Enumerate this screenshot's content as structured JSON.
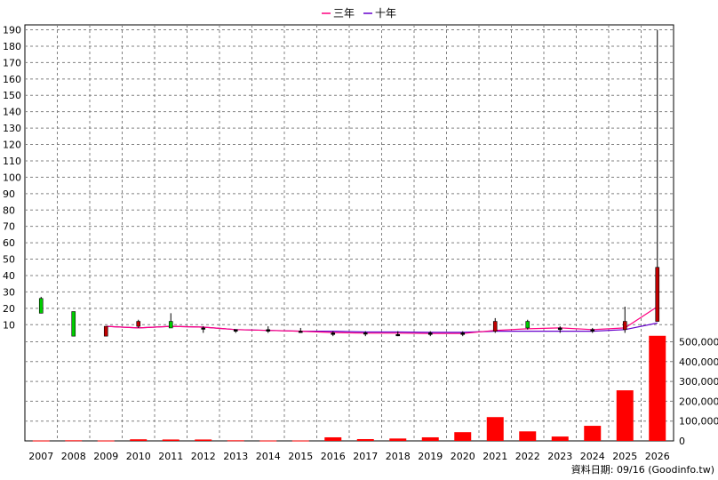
{
  "chart_data": {
    "type": "candlestick",
    "legend": [
      {
        "name": "三年",
        "color": "#ff0080"
      },
      {
        "name": "十年",
        "color": "#6600cc"
      }
    ],
    "years": [
      "2007",
      "2008",
      "2009",
      "2010",
      "2011",
      "2012",
      "2013",
      "2014",
      "2015",
      "2016",
      "2017",
      "2018",
      "2019",
      "2020",
      "2021",
      "2022",
      "2023",
      "2024",
      "2025",
      "2026"
    ],
    "price_axis": {
      "ticks": [
        10,
        20,
        30,
        40,
        50,
        60,
        70,
        80,
        90,
        100,
        110,
        120,
        130,
        140,
        150,
        160,
        170,
        180,
        190
      ],
      "ylim": [
        2,
        193
      ]
    },
    "volume_axis": {
      "ticks": [
        "0",
        "100,000",
        "200,000",
        "300,000",
        "400,000",
        "500,000"
      ],
      "tick_values": [
        0,
        100000,
        200000,
        300000,
        400000,
        500000
      ],
      "ylim": [
        0,
        520000
      ]
    },
    "candles": [
      {
        "year": "2007",
        "open": 17,
        "close": 26,
        "high": 27,
        "low": 17,
        "color": "green"
      },
      {
        "year": "2008",
        "open": 18,
        "close": 3,
        "high": 18,
        "low": 3,
        "color": "green"
      },
      {
        "year": "2009",
        "open": 9,
        "close": 3,
        "high": 9,
        "low": 3,
        "color": "red"
      },
      {
        "year": "2010",
        "open": 9,
        "close": 12,
        "high": 13,
        "low": 8,
        "color": "red"
      },
      {
        "year": "2011",
        "open": 12,
        "close": 8,
        "high": 17,
        "low": 8,
        "color": "green"
      },
      {
        "year": "2012",
        "open": 8,
        "close": 8,
        "high": 9,
        "low": 5,
        "color": "black"
      },
      {
        "year": "2013",
        "open": 7,
        "close": 6,
        "high": 7,
        "low": 5,
        "color": "black"
      },
      {
        "year": "2014",
        "open": 7,
        "close": 6,
        "high": 9,
        "low": 5,
        "color": "black"
      },
      {
        "year": "2015",
        "open": 6,
        "close": 6,
        "high": 8,
        "low": 5,
        "color": "black"
      },
      {
        "year": "2016",
        "open": 5,
        "close": 4,
        "high": 6,
        "low": 3,
        "color": "black"
      },
      {
        "year": "2017",
        "open": 5,
        "close": 5,
        "high": 6,
        "low": 3,
        "color": "black"
      },
      {
        "year": "2018",
        "open": 4,
        "close": 4,
        "high": 6,
        "low": 3,
        "color": "black"
      },
      {
        "year": "2019",
        "open": 5,
        "close": 4,
        "high": 6,
        "low": 3,
        "color": "black"
      },
      {
        "year": "2020",
        "open": 5,
        "close": 4,
        "high": 6,
        "low": 3,
        "color": "black"
      },
      {
        "year": "2021",
        "open": 6,
        "close": 12,
        "high": 14,
        "low": 5,
        "color": "red"
      },
      {
        "year": "2022",
        "open": 12,
        "close": 8,
        "high": 13,
        "low": 7,
        "color": "green"
      },
      {
        "year": "2023",
        "open": 8,
        "close": 7,
        "high": 9,
        "low": 5,
        "color": "black"
      },
      {
        "year": "2024",
        "open": 7,
        "close": 6,
        "high": 8,
        "low": 5,
        "color": "black"
      },
      {
        "year": "2025",
        "open": 7,
        "close": 12,
        "high": 21,
        "low": 5,
        "color": "red"
      },
      {
        "year": "2026",
        "open": 12,
        "close": 45,
        "high": 190,
        "low": 12,
        "color": "red"
      }
    ],
    "ma_three": [
      null,
      null,
      9,
      8,
      9,
      8.5,
      7,
      6.5,
      6,
      5.2,
      4.8,
      4.8,
      4.6,
      4.6,
      6.5,
      7.5,
      8,
      7,
      8,
      21
    ],
    "ma_ten": [
      null,
      null,
      9,
      8,
      9,
      8.5,
      7,
      6.5,
      6,
      6,
      5.5,
      5.5,
      5.3,
      5.3,
      6,
      6,
      6,
      6,
      7,
      11
    ],
    "volumes": [
      2000,
      3000,
      2000,
      8000,
      7000,
      7000,
      3000,
      2000,
      2000,
      18000,
      9000,
      12000,
      18000,
      44000,
      120000,
      48000,
      22000,
      76000,
      255000,
      530000
    ]
  },
  "footer": {
    "text": "資料日期: 09/16  (Goodinfo.tw)"
  },
  "colors": {
    "up": "#e0000a",
    "down": "#00c800",
    "volume": "#ff0000",
    "grid": "#808080"
  }
}
